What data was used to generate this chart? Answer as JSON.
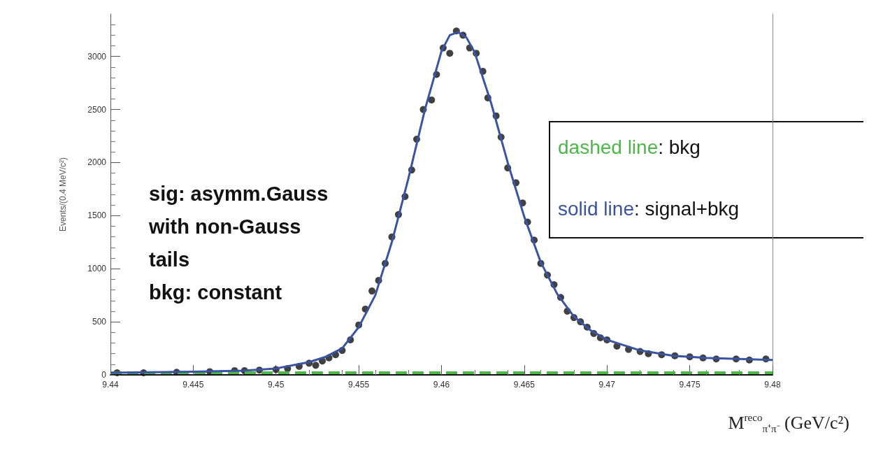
{
  "chart_data": {
    "type": "scatter",
    "xlabel": "M$^{reco}$$_{π⁺π⁻}$ (GeV/c²)",
    "ylabel": "Events/(0.4 MeV/c²)",
    "xlim": [
      9.44,
      9.48
    ],
    "xticks": [
      9.44,
      9.445,
      9.45,
      9.455,
      9.46,
      9.465,
      9.47,
      9.475,
      9.48
    ],
    "ylim": [
      0,
      3400
    ],
    "yticks": [
      0,
      500,
      1000,
      1500,
      2000,
      2500,
      3000
    ],
    "grid": false,
    "legend": "right",
    "annotations": [
      "sig: asymm.Gauss\nwith non-Gauss\ntails\nbkg: constant"
    ],
    "series": [
      {
        "color": "#111111",
        "marker": "circle",
        "x": [
          9.4404,
          9.442,
          9.444,
          9.446,
          9.4475,
          9.4481,
          9.449,
          9.45,
          9.4507,
          9.4514,
          9.452,
          9.4524,
          9.4528,
          9.4532,
          9.4536,
          9.454,
          9.4545,
          9.455,
          9.4554,
          9.4558,
          9.4562,
          9.4566,
          9.457,
          9.4574,
          9.4578,
          9.4582,
          9.4585,
          9.4589,
          9.4594,
          9.4597,
          9.4601,
          9.4605,
          9.4609,
          9.4613,
          9.4617,
          9.4621,
          9.4625,
          9.4628,
          9.4633,
          9.4636,
          9.464,
          9.4645,
          9.4649,
          9.4652,
          9.4656,
          9.466,
          9.4664,
          9.4668,
          9.4672,
          9.4676,
          9.468,
          9.4684,
          9.4688,
          9.4692,
          9.4696,
          9.47,
          9.4706,
          9.4713,
          9.472,
          9.4725,
          9.4733,
          9.4741,
          9.475,
          9.4758,
          9.4766,
          9.4778,
          9.4786,
          9.4796
        ],
        "values": [
          20,
          20,
          25,
          30,
          40,
          40,
          45,
          50,
          60,
          80,
          110,
          90,
          130,
          160,
          190,
          230,
          330,
          470,
          620,
          790,
          890,
          1050,
          1300,
          1510,
          1680,
          1930,
          2220,
          2500,
          2590,
          2830,
          3080,
          3030,
          3240,
          3200,
          3080,
          3030,
          2860,
          2610,
          2440,
          2240,
          1950,
          1810,
          1620,
          1440,
          1270,
          1050,
          940,
          850,
          730,
          600,
          540,
          500,
          450,
          390,
          350,
          330,
          270,
          240,
          220,
          200,
          190,
          180,
          170,
          160,
          150,
          150,
          140,
          150
        ]
      },
      {
        "type": "line",
        "name": "dashed line: bkg",
        "color": "#4db848",
        "line_style": "dashed",
        "x": [
          9.44,
          9.48
        ],
        "values": [
          20,
          20
        ]
      },
      {
        "type": "line",
        "name": "solid line: signal+bkg",
        "color": "#3a53a4",
        "line_style": "solid",
        "x": [
          9.44,
          9.445,
          9.448,
          9.45,
          9.452,
          9.453,
          9.454,
          9.455,
          9.456,
          9.457,
          9.458,
          9.459,
          9.46,
          9.4605,
          9.461,
          9.4615,
          9.462,
          9.463,
          9.464,
          9.465,
          9.466,
          9.467,
          9.468,
          9.469,
          9.47,
          9.472,
          9.474,
          9.476,
          9.478,
          9.48
        ],
        "values": [
          20,
          30,
          40,
          60,
          120,
          170,
          250,
          450,
          750,
          1250,
          1850,
          2500,
          3050,
          3200,
          3230,
          3180,
          3040,
          2560,
          2000,
          1490,
          1060,
          760,
          550,
          420,
          330,
          230,
          180,
          160,
          150,
          140
        ]
      }
    ]
  }
}
